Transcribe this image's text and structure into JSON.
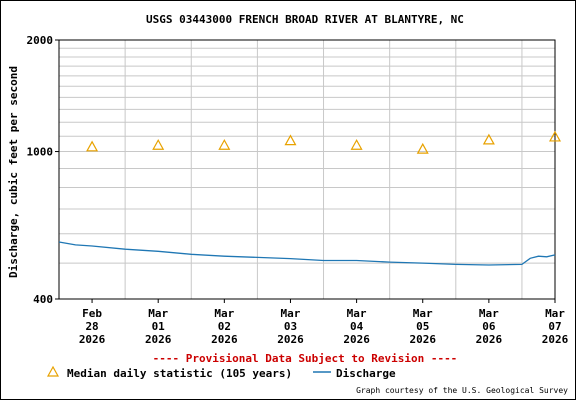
{
  "chart_data": {
    "type": "line",
    "title": "USGS 03443000 FRENCH BROAD RIVER AT BLANTYRE, NC",
    "ylabel": "Discharge, cubic feet per second",
    "xlabel": "",
    "y_scale": "log",
    "ylim": [
      400,
      2000
    ],
    "y_tick_labels": [
      "400",
      "1000",
      "2000"
    ],
    "y_ticks": [
      400,
      1000,
      2000
    ],
    "grid": true,
    "x_range": [
      "2026-02-28T00:00",
      "2026-03-07T12:00"
    ],
    "x_ticks": [
      {
        "date": "2026-02-28T12:00",
        "label": [
          "Feb",
          "28",
          "2026"
        ]
      },
      {
        "date": "2026-03-01T12:00",
        "label": [
          "Mar",
          "01",
          "2026"
        ]
      },
      {
        "date": "2026-03-02T12:00",
        "label": [
          "Mar",
          "02",
          "2026"
        ]
      },
      {
        "date": "2026-03-03T12:00",
        "label": [
          "Mar",
          "03",
          "2026"
        ]
      },
      {
        "date": "2026-03-04T12:00",
        "label": [
          "Mar",
          "04",
          "2026"
        ]
      },
      {
        "date": "2026-03-05T12:00",
        "label": [
          "Mar",
          "05",
          "2026"
        ]
      },
      {
        "date": "2026-03-06T12:00",
        "label": [
          "Mar",
          "06",
          "2026"
        ]
      },
      {
        "date": "2026-03-07T12:00",
        "label": [
          "Mar",
          "07",
          "2026"
        ]
      }
    ],
    "series": [
      {
        "name": "Discharge",
        "color": "#1f77b4",
        "points": [
          {
            "x": "2026-02-28T00:00",
            "y": 570
          },
          {
            "x": "2026-02-28T06:00",
            "y": 560
          },
          {
            "x": "2026-02-28T12:00",
            "y": 556
          },
          {
            "x": "2026-03-01T00:00",
            "y": 545
          },
          {
            "x": "2026-03-01T12:00",
            "y": 538
          },
          {
            "x": "2026-03-02T00:00",
            "y": 528
          },
          {
            "x": "2026-03-02T12:00",
            "y": 522
          },
          {
            "x": "2026-03-03T00:00",
            "y": 518
          },
          {
            "x": "2026-03-03T12:00",
            "y": 514
          },
          {
            "x": "2026-03-04T00:00",
            "y": 508
          },
          {
            "x": "2026-03-04T12:00",
            "y": 508
          },
          {
            "x": "2026-03-05T00:00",
            "y": 503
          },
          {
            "x": "2026-03-05T12:00",
            "y": 500
          },
          {
            "x": "2026-03-06T00:00",
            "y": 496
          },
          {
            "x": "2026-03-06T12:00",
            "y": 494
          },
          {
            "x": "2026-03-07T00:00",
            "y": 496
          },
          {
            "x": "2026-03-07T03:00",
            "y": 515
          },
          {
            "x": "2026-03-07T06:00",
            "y": 522
          },
          {
            "x": "2026-03-07T09:00",
            "y": 520
          },
          {
            "x": "2026-03-07T12:00",
            "y": 526
          }
        ]
      },
      {
        "name": "Median daily statistic (105 years)",
        "marker": "triangle",
        "color": "#e8a200",
        "points": [
          {
            "x": "2026-02-28T12:00",
            "y": 1030
          },
          {
            "x": "2026-03-01T12:00",
            "y": 1040
          },
          {
            "x": "2026-03-02T12:00",
            "y": 1040
          },
          {
            "x": "2026-03-03T12:00",
            "y": 1070
          },
          {
            "x": "2026-03-04T12:00",
            "y": 1040
          },
          {
            "x": "2026-03-05T12:00",
            "y": 1015
          },
          {
            "x": "2026-03-06T12:00",
            "y": 1075
          },
          {
            "x": "2026-03-07T12:00",
            "y": 1095
          }
        ]
      }
    ]
  },
  "notice": "---- Provisional Data Subject to Revision ----",
  "legend": {
    "median_label": "Median daily statistic (105 years)",
    "discharge_label": "Discharge"
  },
  "credit": "Graph courtesy of the U.S. Geological Survey",
  "colors": {
    "discharge": "#1f77b4",
    "median": "#e8a200",
    "notice": "#cc0000",
    "grid": "#c8c8c8"
  }
}
